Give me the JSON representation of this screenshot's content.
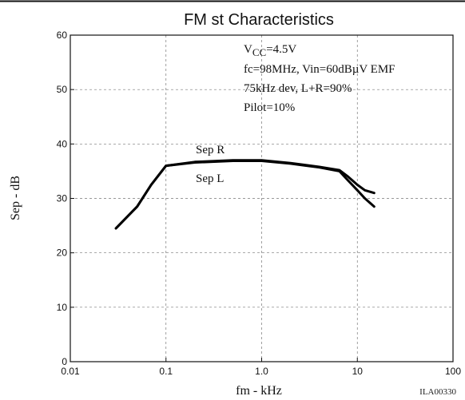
{
  "chart_data": {
    "type": "line",
    "title": "FM st Characteristics",
    "xlabel": "fm  -  kHz",
    "ylabel": "Sep  -  dB",
    "xscale": "log",
    "xlim": [
      0.01,
      100
    ],
    "ylim": [
      0,
      60
    ],
    "grid": true,
    "x_ticks": [
      "0.01",
      "0.1",
      "1.0",
      "10",
      "100"
    ],
    "y_ticks": [
      "0",
      "10",
      "20",
      "30",
      "40",
      "50",
      "60"
    ],
    "series": [
      {
        "name": "Sep R",
        "x": [
          0.03,
          0.05,
          0.07,
          0.1,
          0.2,
          0.5,
          1.0,
          2.0,
          4.0,
          6.5,
          8.0,
          10.0,
          12.0,
          15.0
        ],
        "y": [
          24.5,
          28.5,
          32.5,
          36.0,
          36.7,
          37.0,
          37.0,
          36.5,
          35.8,
          35.2,
          34.0,
          32.5,
          31.5,
          31.0
        ]
      },
      {
        "name": "Sep L",
        "x": [
          0.03,
          0.05,
          0.07,
          0.1,
          0.2,
          0.5,
          1.0,
          2.0,
          4.0,
          6.5,
          8.0,
          10.0,
          12.0,
          15.0
        ],
        "y": [
          24.5,
          28.5,
          32.5,
          36.0,
          36.6,
          36.9,
          36.9,
          36.4,
          35.7,
          35.0,
          33.3,
          31.5,
          30.0,
          28.5
        ]
      }
    ],
    "series_labels": {
      "sep_r": "Sep R",
      "sep_l": "Sep L"
    },
    "annotations": {
      "vcc_main": "V",
      "vcc_sub": "CC",
      "vcc_value": "=4.5V",
      "line2": "fc=98MHz, Vin=60dBµV EMF",
      "line3": "75kHz dev, L+R=90%",
      "line4": "Pilot=10%"
    },
    "code": "ILA00330"
  }
}
